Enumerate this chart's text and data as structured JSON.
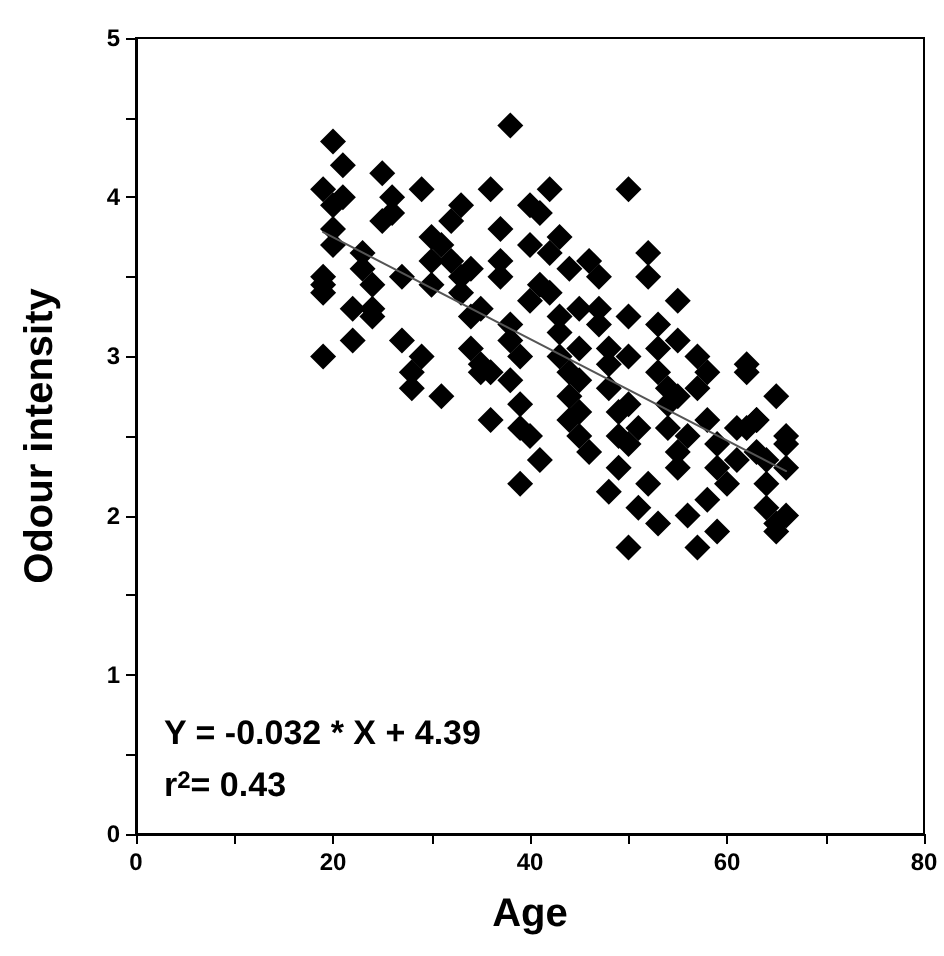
{
  "chart_data": {
    "type": "scatter",
    "xlabel": "Age",
    "ylabel": "Odour intensity",
    "xlim": [
      0,
      80
    ],
    "ylim": [
      0,
      5
    ],
    "xticks": [
      0,
      {
        "value": 10,
        "label": null
      },
      20,
      {
        "value": 30,
        "label": null
      },
      40,
      {
        "value": 50,
        "label": null
      },
      60,
      {
        "value": 70,
        "label": null
      },
      80
    ],
    "yticks": [
      0,
      {
        "value": 0.5,
        "label": null
      },
      1,
      {
        "value": 1.5,
        "label": null
      },
      2,
      {
        "value": 2.5,
        "label": null
      },
      3,
      {
        "value": 3.5,
        "label": null
      },
      4,
      {
        "value": 4.5,
        "label": null
      },
      5
    ],
    "grid": false,
    "annotations": [
      "Y = -0.032 * X + 4.39",
      "r$^{2}$= 0.43"
    ],
    "series": [
      {
        "marker": "diamond",
        "color": "#000000",
        "x": [
          19,
          19,
          20,
          20,
          21,
          19,
          20,
          22,
          19,
          20,
          21,
          22,
          19,
          23,
          23,
          24,
          24,
          25,
          25,
          26,
          24,
          26,
          27,
          27,
          28,
          28,
          29,
          29,
          30,
          30,
          30,
          31,
          32,
          32,
          33,
          33,
          34,
          34,
          35,
          35,
          31,
          33,
          34,
          35,
          36,
          36,
          37,
          37,
          37,
          38,
          38,
          38,
          39,
          39,
          40,
          39,
          40,
          40,
          40,
          39,
          38,
          36,
          41,
          41,
          42,
          42,
          43,
          43,
          43,
          44,
          44,
          44,
          45,
          41,
          42,
          43,
          44,
          45,
          45,
          45,
          45,
          46,
          46,
          47,
          47,
          47,
          48,
          48,
          48,
          49,
          49,
          49,
          48,
          50,
          50,
          50,
          50,
          50,
          50,
          51,
          51,
          52,
          52,
          53,
          53,
          53,
          54,
          54,
          54,
          55,
          55,
          52,
          53,
          55,
          55,
          55,
          56,
          56,
          57,
          57,
          58,
          58,
          59,
          59,
          60,
          58,
          59,
          57,
          61,
          61,
          62,
          62,
          63,
          63,
          64,
          64,
          65,
          65,
          62,
          64,
          66,
          66,
          66,
          63,
          65,
          66
        ],
        "values": [
          4.05,
          3.45,
          4.35,
          3.95,
          4.2,
          3.0,
          3.7,
          3.3,
          3.4,
          3.8,
          4.0,
          3.1,
          3.5,
          3.65,
          3.55,
          3.25,
          3.3,
          4.15,
          3.85,
          4.0,
          3.45,
          3.9,
          3.5,
          3.1,
          2.9,
          2.8,
          3.0,
          4.05,
          3.75,
          3.6,
          3.45,
          3.7,
          3.85,
          3.6,
          3.5,
          3.4,
          3.25,
          3.05,
          2.9,
          2.95,
          2.75,
          3.95,
          3.55,
          3.3,
          2.6,
          4.05,
          3.8,
          3.6,
          3.5,
          3.2,
          3.1,
          2.85,
          2.7,
          2.55,
          2.5,
          2.2,
          3.95,
          3.7,
          3.35,
          3.0,
          4.45,
          2.9,
          3.45,
          3.9,
          3.65,
          3.4,
          3.25,
          3.15,
          3.0,
          2.9,
          2.75,
          2.6,
          2.5,
          2.35,
          4.05,
          3.75,
          3.55,
          3.3,
          3.05,
          2.85,
          2.65,
          2.4,
          3.6,
          3.5,
          3.3,
          3.2,
          3.05,
          2.95,
          2.8,
          2.65,
          2.5,
          2.3,
          2.15,
          1.8,
          4.05,
          3.25,
          3.0,
          2.7,
          2.45,
          2.05,
          2.55,
          3.5,
          3.65,
          3.2,
          3.05,
          2.9,
          2.8,
          2.7,
          2.55,
          2.4,
          2.3,
          2.2,
          1.95,
          3.35,
          3.1,
          2.75,
          2.5,
          2.0,
          3.0,
          2.8,
          2.9,
          2.6,
          2.45,
          2.3,
          2.2,
          2.1,
          1.9,
          1.8,
          2.55,
          2.35,
          2.95,
          2.9,
          2.6,
          2.4,
          2.2,
          2.05,
          1.9,
          2.75,
          2.55,
          2.35,
          2.3,
          2.0,
          2.5,
          2.6,
          1.95,
          2.45
        ]
      },
      {
        "type": "line",
        "marker": "none",
        "color": "#555555",
        "x": [
          19,
          66
        ],
        "values": [
          3.78,
          2.28
        ]
      }
    ]
  }
}
